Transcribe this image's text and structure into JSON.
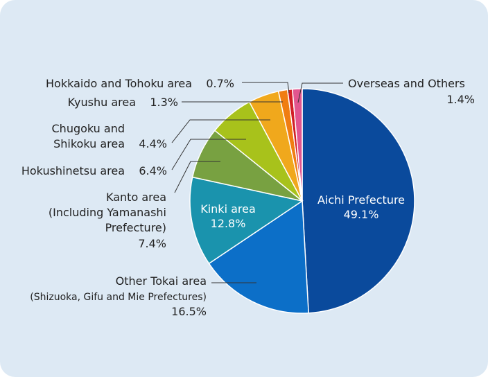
{
  "chart_data": {
    "type": "pie",
    "title": "",
    "start_angle_deg": 0,
    "direction": "clockwise",
    "slices": [
      {
        "label": "Aichi Prefecture",
        "display_value": "49.1%",
        "value": 49.1,
        "color": "#0a4a9c"
      },
      {
        "label": "Other Tokai area",
        "label_line2": "(Shizuoka, Gifu and Mie Prefectures)",
        "display_value": "16.5%",
        "value": 16.5,
        "color": "#0c6fc8"
      },
      {
        "label": "Kinki area",
        "display_value": "12.8%",
        "value": 12.8,
        "color": "#1a93ad"
      },
      {
        "label": "Kanto area",
        "label_line2": "(Including Yamanashi",
        "label_line3": "Prefecture)",
        "display_value": "7.4%",
        "value": 7.4,
        "color": "#78a141"
      },
      {
        "label": "Hokushinetsu area",
        "display_value": "6.4%",
        "value": 6.4,
        "color": "#a8c21b"
      },
      {
        "label": "Chugoku and",
        "label_line2": "Shikoku area",
        "display_value": "4.4%",
        "value": 4.4,
        "color": "#f0a81c"
      },
      {
        "label": "Kyushu area",
        "display_value": "1.3%",
        "value": 1.3,
        "color": "#f07d12"
      },
      {
        "label": "Hokkaido and Tohoku area",
        "display_value": "0.7%",
        "value": 0.7,
        "color": "#d21f26"
      },
      {
        "label": "Overseas and Others",
        "display_value": "1.4%",
        "value": 1.4,
        "color": "#e2558f"
      }
    ]
  }
}
